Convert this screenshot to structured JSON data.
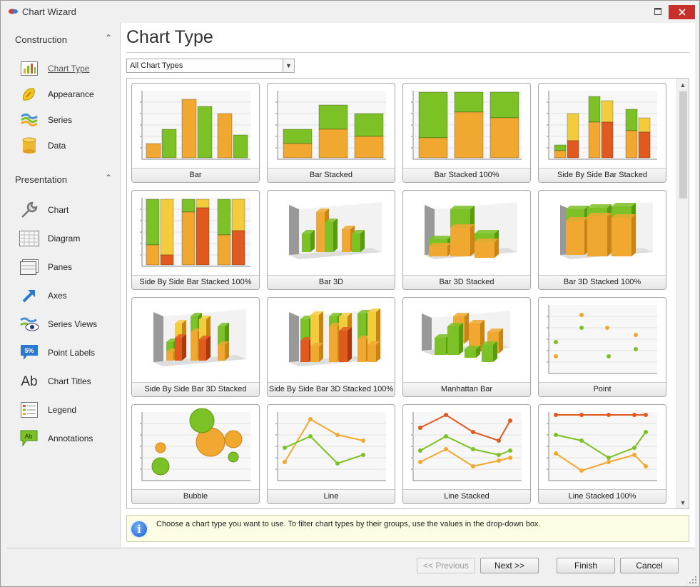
{
  "window": {
    "title": "Chart Wizard"
  },
  "sidebar": {
    "groups": [
      {
        "label": "Construction",
        "items": [
          {
            "label": "Chart Type",
            "icon": "chart-type-icon",
            "active": true
          },
          {
            "label": "Appearance",
            "icon": "appearance-icon"
          },
          {
            "label": "Series",
            "icon": "series-icon"
          },
          {
            "label": "Data",
            "icon": "data-icon"
          }
        ]
      },
      {
        "label": "Presentation",
        "items": [
          {
            "label": "Chart",
            "icon": "wrench-icon"
          },
          {
            "label": "Diagram",
            "icon": "diagram-icon"
          },
          {
            "label": "Panes",
            "icon": "panes-icon"
          },
          {
            "label": "Axes",
            "icon": "axes-icon"
          },
          {
            "label": "Series Views",
            "icon": "series-views-icon"
          },
          {
            "label": "Point Labels",
            "icon": "point-labels-icon",
            "icon_text": "5%"
          },
          {
            "label": "Chart Titles",
            "icon": "chart-titles-icon",
            "icon_text": "Ab"
          },
          {
            "label": "Legend",
            "icon": "legend-icon"
          },
          {
            "label": "Annotations",
            "icon": "annotations-icon",
            "icon_text": "Ab"
          }
        ]
      }
    ]
  },
  "main": {
    "title": "Chart Type",
    "filter": {
      "selected": "All Chart Types"
    },
    "chart_types": [
      "Bar",
      "Bar Stacked",
      "Bar Stacked 100%",
      "Side By Side Bar Stacked",
      "Side By Side Bar Stacked 100%",
      "Bar 3D",
      "Bar 3D Stacked",
      "Bar 3D Stacked 100%",
      "Side By Side Bar 3D Stacked",
      "Side By Side Bar 3D Stacked 100%",
      "Manhattan Bar",
      "Point",
      "Bubble",
      "Line",
      "Line Stacked",
      "Line Stacked 100%"
    ],
    "hint": "Choose a chart type you want to use. To filter chart types by their groups, use the values in the drop-down box."
  },
  "footer": {
    "previous": "<< Previous",
    "next": "Next >>",
    "finish": "Finish",
    "cancel": "Cancel"
  },
  "colors": {
    "green": "#7cc125",
    "orange": "#f0a830",
    "red": "#e05a20",
    "yellow": "#f3cc3e",
    "accent": "#c7302a"
  }
}
